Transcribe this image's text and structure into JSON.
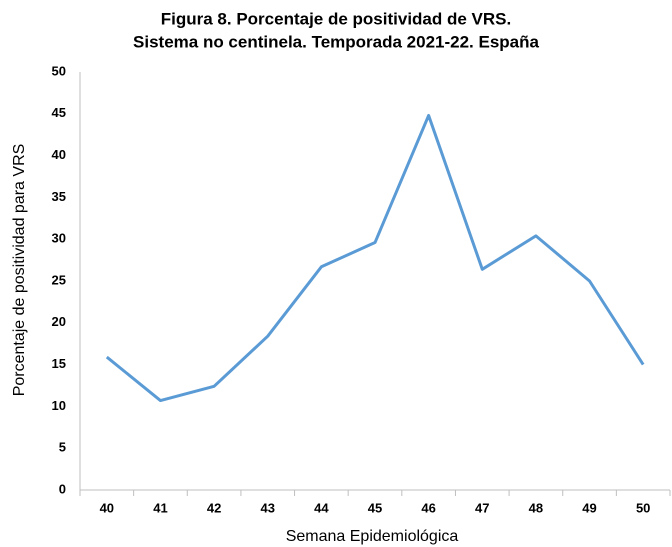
{
  "chart_data": {
    "type": "line",
    "title": "Figura 8. Porcentaje de positividad de VRS.",
    "subtitle": "Sistema no centinela. Temporada 2021-22. España",
    "x_label": "Semana Epidemiológica",
    "y_label": "Porcentaje de positividad para VRS",
    "categories": [
      "40",
      "41",
      "42",
      "43",
      "44",
      "45",
      "46",
      "47",
      "48",
      "49",
      "50"
    ],
    "values": [
      15.9,
      10.7,
      12.4,
      18.4,
      26.7,
      29.6,
      44.8,
      26.4,
      30.4,
      25.0,
      15.0
    ],
    "color": "#5b9bd5",
    "ylim": [
      0,
      50
    ],
    "yticks": [
      0,
      5,
      10,
      15,
      20,
      25,
      30,
      35,
      40,
      45,
      50
    ],
    "grid": false
  }
}
